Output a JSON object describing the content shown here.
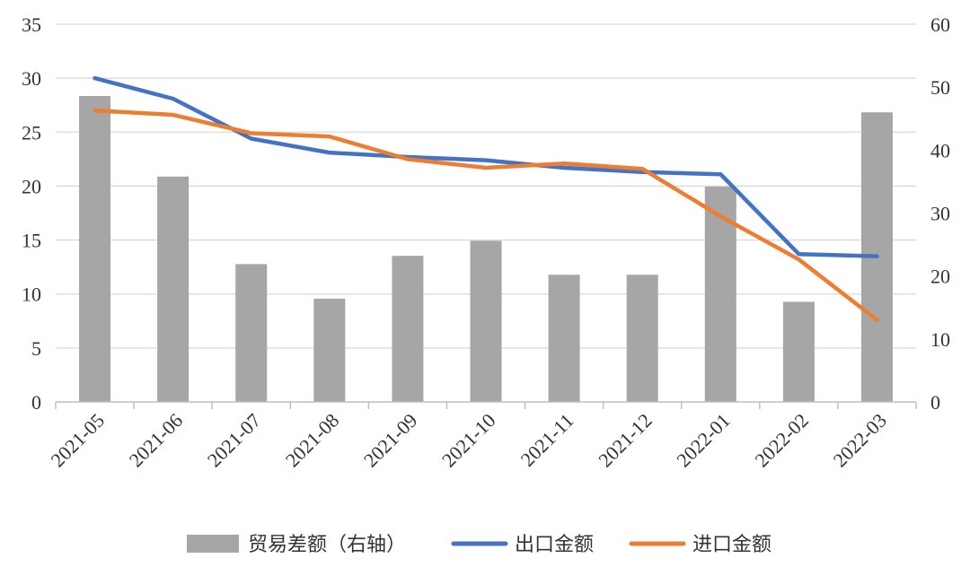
{
  "chart_data": {
    "type": "bar",
    "categories": [
      "2021-05",
      "2021-06",
      "2021-07",
      "2021-08",
      "2021-09",
      "2021-10",
      "2021-11",
      "2021-12",
      "2022-01",
      "2022-02",
      "2022-03"
    ],
    "series": [
      {
        "name": "贸易差额（右轴）",
        "type": "bar",
        "axis": "right",
        "color": "#a6a6a6",
        "values": [
          48.6,
          35.8,
          21.9,
          16.4,
          23.2,
          25.6,
          20.2,
          20.2,
          34.2,
          15.9,
          46.0
        ]
      },
      {
        "name": "出口金额",
        "type": "line",
        "axis": "left",
        "color": "#4472c4",
        "values": [
          30.0,
          28.1,
          24.4,
          23.1,
          22.7,
          22.4,
          21.7,
          21.3,
          21.1,
          13.7,
          13.5
        ]
      },
      {
        "name": "进口金额",
        "type": "line",
        "axis": "left",
        "color": "#ed7d31",
        "values": [
          27.0,
          26.6,
          24.9,
          24.6,
          22.5,
          21.7,
          22.1,
          21.6,
          17.2,
          13.2,
          7.6
        ]
      }
    ],
    "y_left": {
      "range": [
        0,
        35
      ],
      "ticks": [
        "0",
        "5",
        "10",
        "15",
        "20",
        "25",
        "30",
        "35"
      ]
    },
    "y_right": {
      "range": [
        0,
        60
      ],
      "ticks": [
        "0",
        "10",
        "20",
        "30",
        "40",
        "50",
        "60"
      ]
    },
    "grid": true,
    "legend_position": "bottom"
  }
}
